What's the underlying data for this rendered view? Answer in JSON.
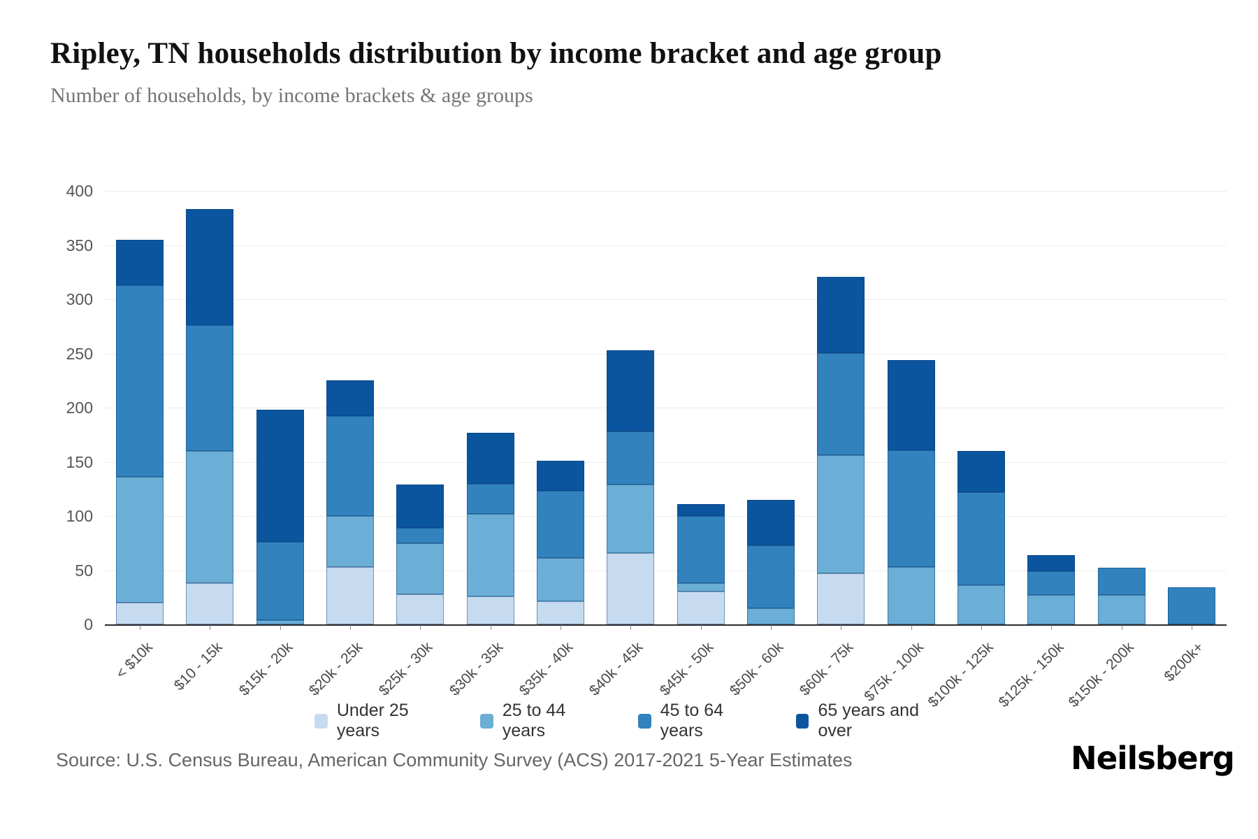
{
  "header": {
    "title": "Ripley, TN households distribution by income bracket and age group",
    "subtitle": "Number of households, by income brackets & age groups"
  },
  "chart_data": {
    "type": "bar",
    "stacked": true,
    "title": "Ripley, TN households distribution by income bracket and age group",
    "xlabel": "",
    "ylabel": "Number of households",
    "ylim": [
      0,
      400
    ],
    "yticks": [
      0,
      50,
      100,
      150,
      200,
      250,
      300,
      350,
      400
    ],
    "grid": true,
    "legend_position": "bottom",
    "categories": [
      "< $10k",
      "$10 - 15k",
      "$15k - 20k",
      "$20k - 25k",
      "$25k - 30k",
      "$30k - 35k",
      "$35k - 40k",
      "$40k - 45k",
      "$45k - 50k",
      "$50k - 60k",
      "$60k - 75k",
      "$75k - 100k",
      "$100k - 125k",
      "$125k - 150k",
      "$150k - 200k",
      "$200k+"
    ],
    "series": [
      {
        "name": "Under 25 years",
        "color": "#c6dbef",
        "values": [
          20,
          38,
          0,
          53,
          28,
          26,
          21,
          66,
          30,
          0,
          47,
          0,
          0,
          0,
          0,
          0
        ]
      },
      {
        "name": "25 to 44 years",
        "color": "#6baed6",
        "values": [
          116,
          122,
          4,
          47,
          47,
          76,
          40,
          63,
          8,
          15,
          109,
          53,
          36,
          27,
          27,
          0
        ]
      },
      {
        "name": "45 to 64 years",
        "color": "#3182bd",
        "values": [
          177,
          116,
          72,
          92,
          14,
          28,
          62,
          49,
          62,
          58,
          94,
          108,
          86,
          22,
          25,
          34
        ]
      },
      {
        "name": "65 years and over",
        "color": "#0b559f",
        "values": [
          42,
          107,
          122,
          33,
          40,
          47,
          28,
          75,
          11,
          42,
          70,
          83,
          38,
          15,
          0,
          0
        ]
      }
    ],
    "totals": [
      355,
      383,
      198,
      225,
      129,
      177,
      151,
      253,
      111,
      115,
      320,
      244,
      160,
      64,
      52,
      34
    ]
  },
  "footer": {
    "source": "Source: U.S. Census Bureau, American Community Survey (ACS) 2017-2021 5-Year Estimates",
    "logo": "Neilsberg"
  }
}
